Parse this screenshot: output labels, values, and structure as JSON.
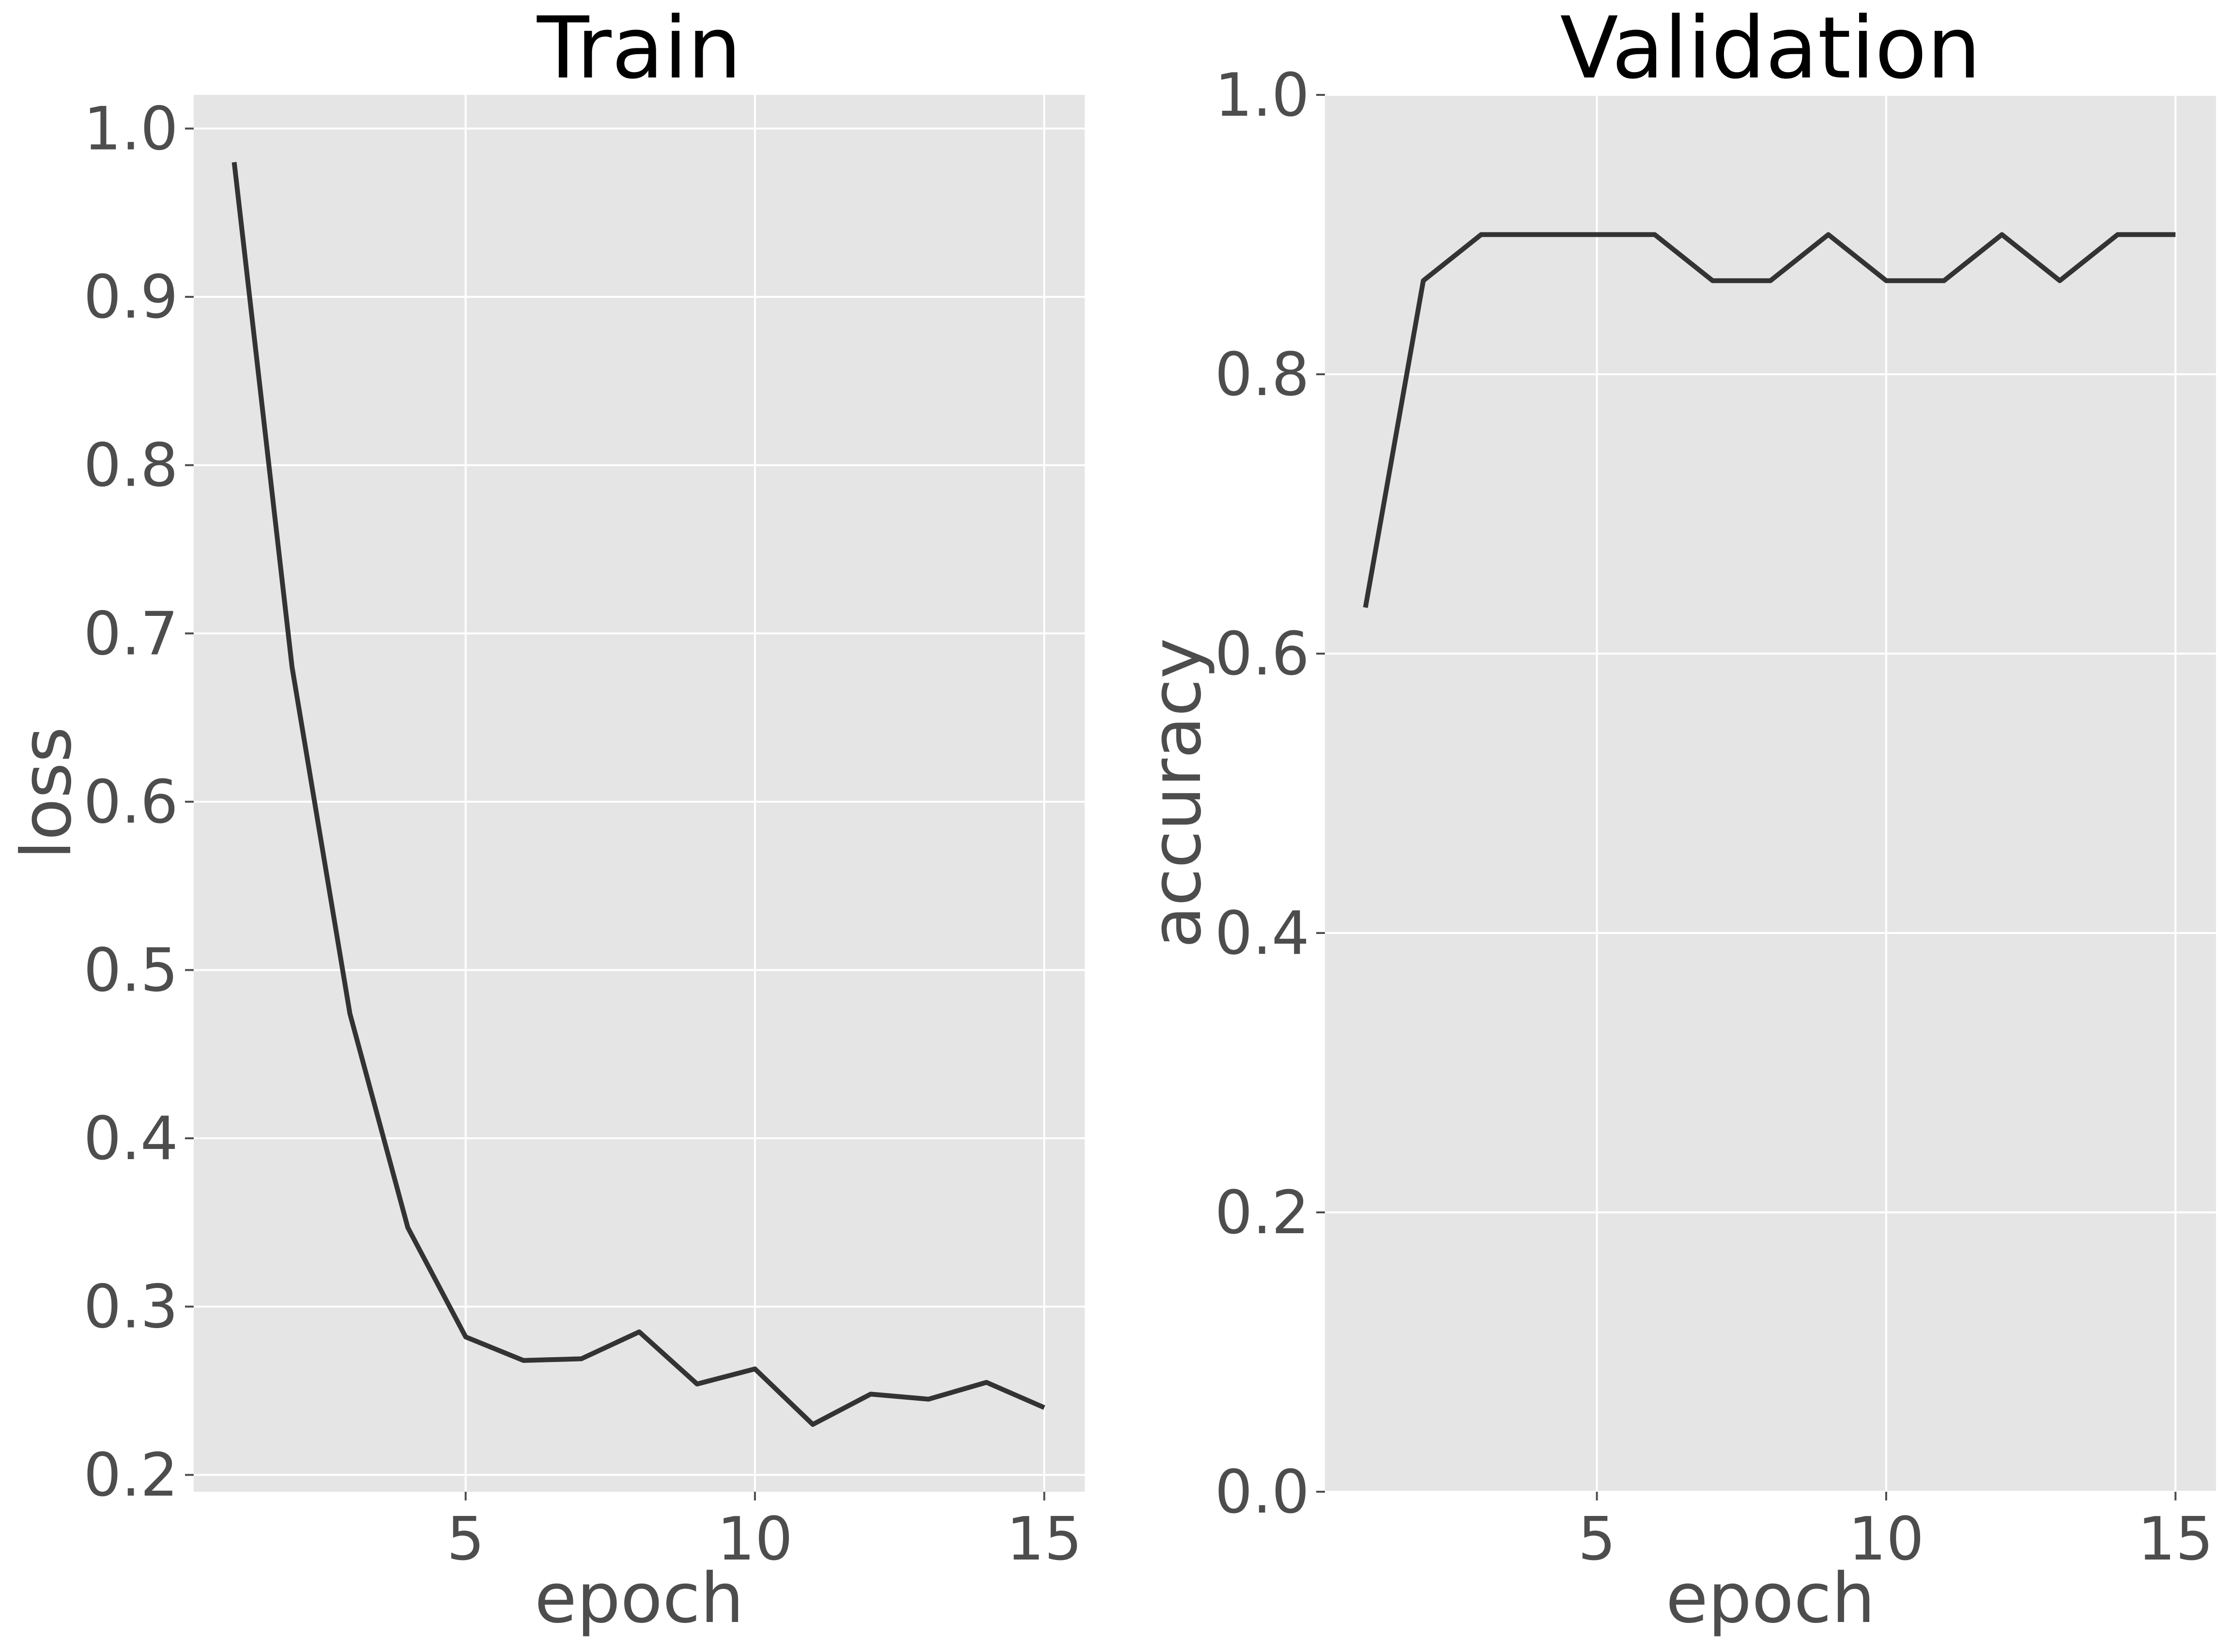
{
  "figure": {
    "background": "#ffffff",
    "panel_background": "#e5e5e5",
    "grid_color": "#ffffff",
    "line_color": "#333333",
    "text_color": "#4d4d4d"
  },
  "chart_data": [
    {
      "type": "line",
      "title": "Train",
      "xlabel": "epoch",
      "ylabel": "loss",
      "xlim": [
        0.3,
        15.7
      ],
      "ylim": [
        0.19,
        1.02
      ],
      "xticks": [
        5,
        10,
        15
      ],
      "xtick_labels": [
        "5",
        "10",
        "15"
      ],
      "yticks": [
        0.2,
        0.3,
        0.4,
        0.5,
        0.6,
        0.7,
        0.8,
        0.9,
        1.0
      ],
      "ytick_labels": [
        "0.2",
        "0.3",
        "0.4",
        "0.5",
        "0.6",
        "0.7",
        "0.8",
        "0.9",
        "1.0"
      ],
      "grid": true,
      "legend": "none",
      "series": [
        {
          "x": [
            1,
            2,
            3,
            4,
            5,
            6,
            7,
            8,
            9,
            10,
            11,
            12,
            13,
            14,
            15
          ],
          "values": [
            0.98,
            0.68,
            0.474,
            0.347,
            0.282,
            0.268,
            0.269,
            0.285,
            0.254,
            0.263,
            0.23,
            0.248,
            0.245,
            0.255,
            0.24
          ]
        }
      ]
    },
    {
      "type": "line",
      "title": "Validation",
      "xlabel": "epoch",
      "ylabel": "accuracy",
      "xlim": [
        0.3,
        15.7
      ],
      "ylim": [
        0.0,
        1.0
      ],
      "xticks": [
        5,
        10,
        15
      ],
      "xtick_labels": [
        "5",
        "10",
        "15"
      ],
      "yticks": [
        0.0,
        0.2,
        0.4,
        0.6,
        0.8,
        1.0
      ],
      "ytick_labels": [
        "0.0",
        "0.2",
        "0.4",
        "0.6",
        "0.8",
        "1.0"
      ],
      "grid": true,
      "legend": "none",
      "series": [
        {
          "x": [
            1,
            2,
            3,
            4,
            5,
            6,
            7,
            8,
            9,
            10,
            11,
            12,
            13,
            14,
            15
          ],
          "values": [
            0.633,
            0.867,
            0.9,
            0.9,
            0.9,
            0.9,
            0.867,
            0.867,
            0.9,
            0.867,
            0.867,
            0.9,
            0.867,
            0.9,
            0.9
          ]
        }
      ]
    }
  ]
}
